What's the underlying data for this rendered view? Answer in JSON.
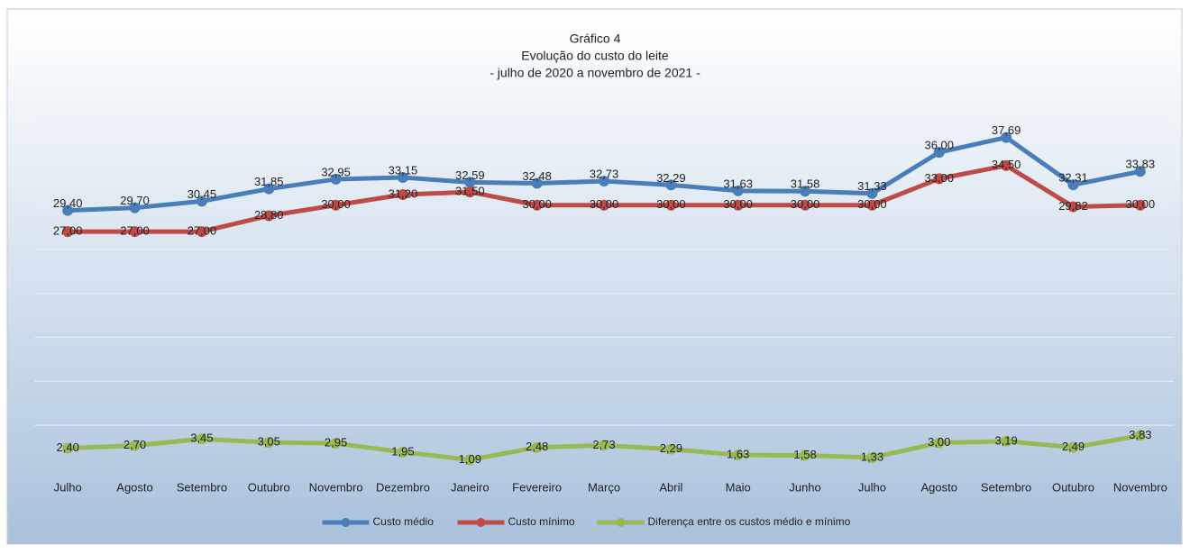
{
  "chart_data": {
    "type": "line",
    "title": "Gráfico 4",
    "subtitle": [
      "Evolução do custo do leite",
      "- julho de 2020 a novembro de 2021 -"
    ],
    "categories": [
      "Julho",
      "Agosto",
      "Setembro",
      "Outubro",
      "Novembro",
      "Dezembro",
      "Janeiro",
      "Fevereiro",
      "Março",
      "Abril",
      "Maio",
      "Junho",
      "Julho",
      "Agosto",
      "Setembro",
      "Outubro",
      "Novembro"
    ],
    "series": [
      {
        "name": "Custo médio",
        "color": "#4a7ebb",
        "values": [
          29.4,
          29.7,
          30.45,
          31.85,
          32.95,
          33.15,
          32.59,
          32.48,
          32.73,
          32.29,
          31.63,
          31.58,
          31.33,
          36.0,
          37.69,
          32.31,
          33.83
        ],
        "value_labels": [
          "29,40",
          "29,70",
          "30,45",
          "31,85",
          "32,95",
          "33,15",
          "32,59",
          "32,48",
          "32,73",
          "32,29",
          "31,63",
          "31,58",
          "31,33",
          "36,00",
          "37,69",
          "32,31",
          "33,83"
        ]
      },
      {
        "name": "Custo mínimo",
        "color": "#be4b48",
        "values": [
          27.0,
          27.0,
          27.0,
          28.8,
          30.0,
          31.2,
          31.5,
          30.0,
          30.0,
          30.0,
          30.0,
          30.0,
          30.0,
          33.0,
          34.5,
          29.82,
          30.0
        ],
        "value_labels": [
          "27,00",
          "27,00",
          "27,00",
          "28,80",
          "30,00",
          "31,20",
          "31,50",
          "30,00",
          "30,00",
          "30,00",
          "30,00",
          "30,00",
          "30,00",
          "33,00",
          "34,50",
          "29,82",
          "30,00"
        ]
      },
      {
        "name": "Diferença entre os custos médio e mínimo",
        "color": "#98b954",
        "values": [
          2.4,
          2.7,
          3.45,
          3.05,
          2.95,
          1.95,
          1.09,
          2.48,
          2.73,
          2.29,
          1.63,
          1.58,
          1.33,
          3.0,
          3.19,
          2.49,
          3.83
        ],
        "value_labels": [
          "2,40",
          "2,70",
          "3,45",
          "3,05",
          "2,95",
          "1,95",
          "1,09",
          "2,48",
          "2,73",
          "2,29",
          "1,63",
          "1,58",
          "1,33",
          "3,00",
          "3,19",
          "2,49",
          "3,83"
        ]
      }
    ],
    "ylim": [
      0,
      40
    ],
    "yticks": [
      0,
      5,
      10,
      15,
      20,
      25,
      30,
      35,
      40
    ],
    "grid": true,
    "legend": "bottom"
  }
}
